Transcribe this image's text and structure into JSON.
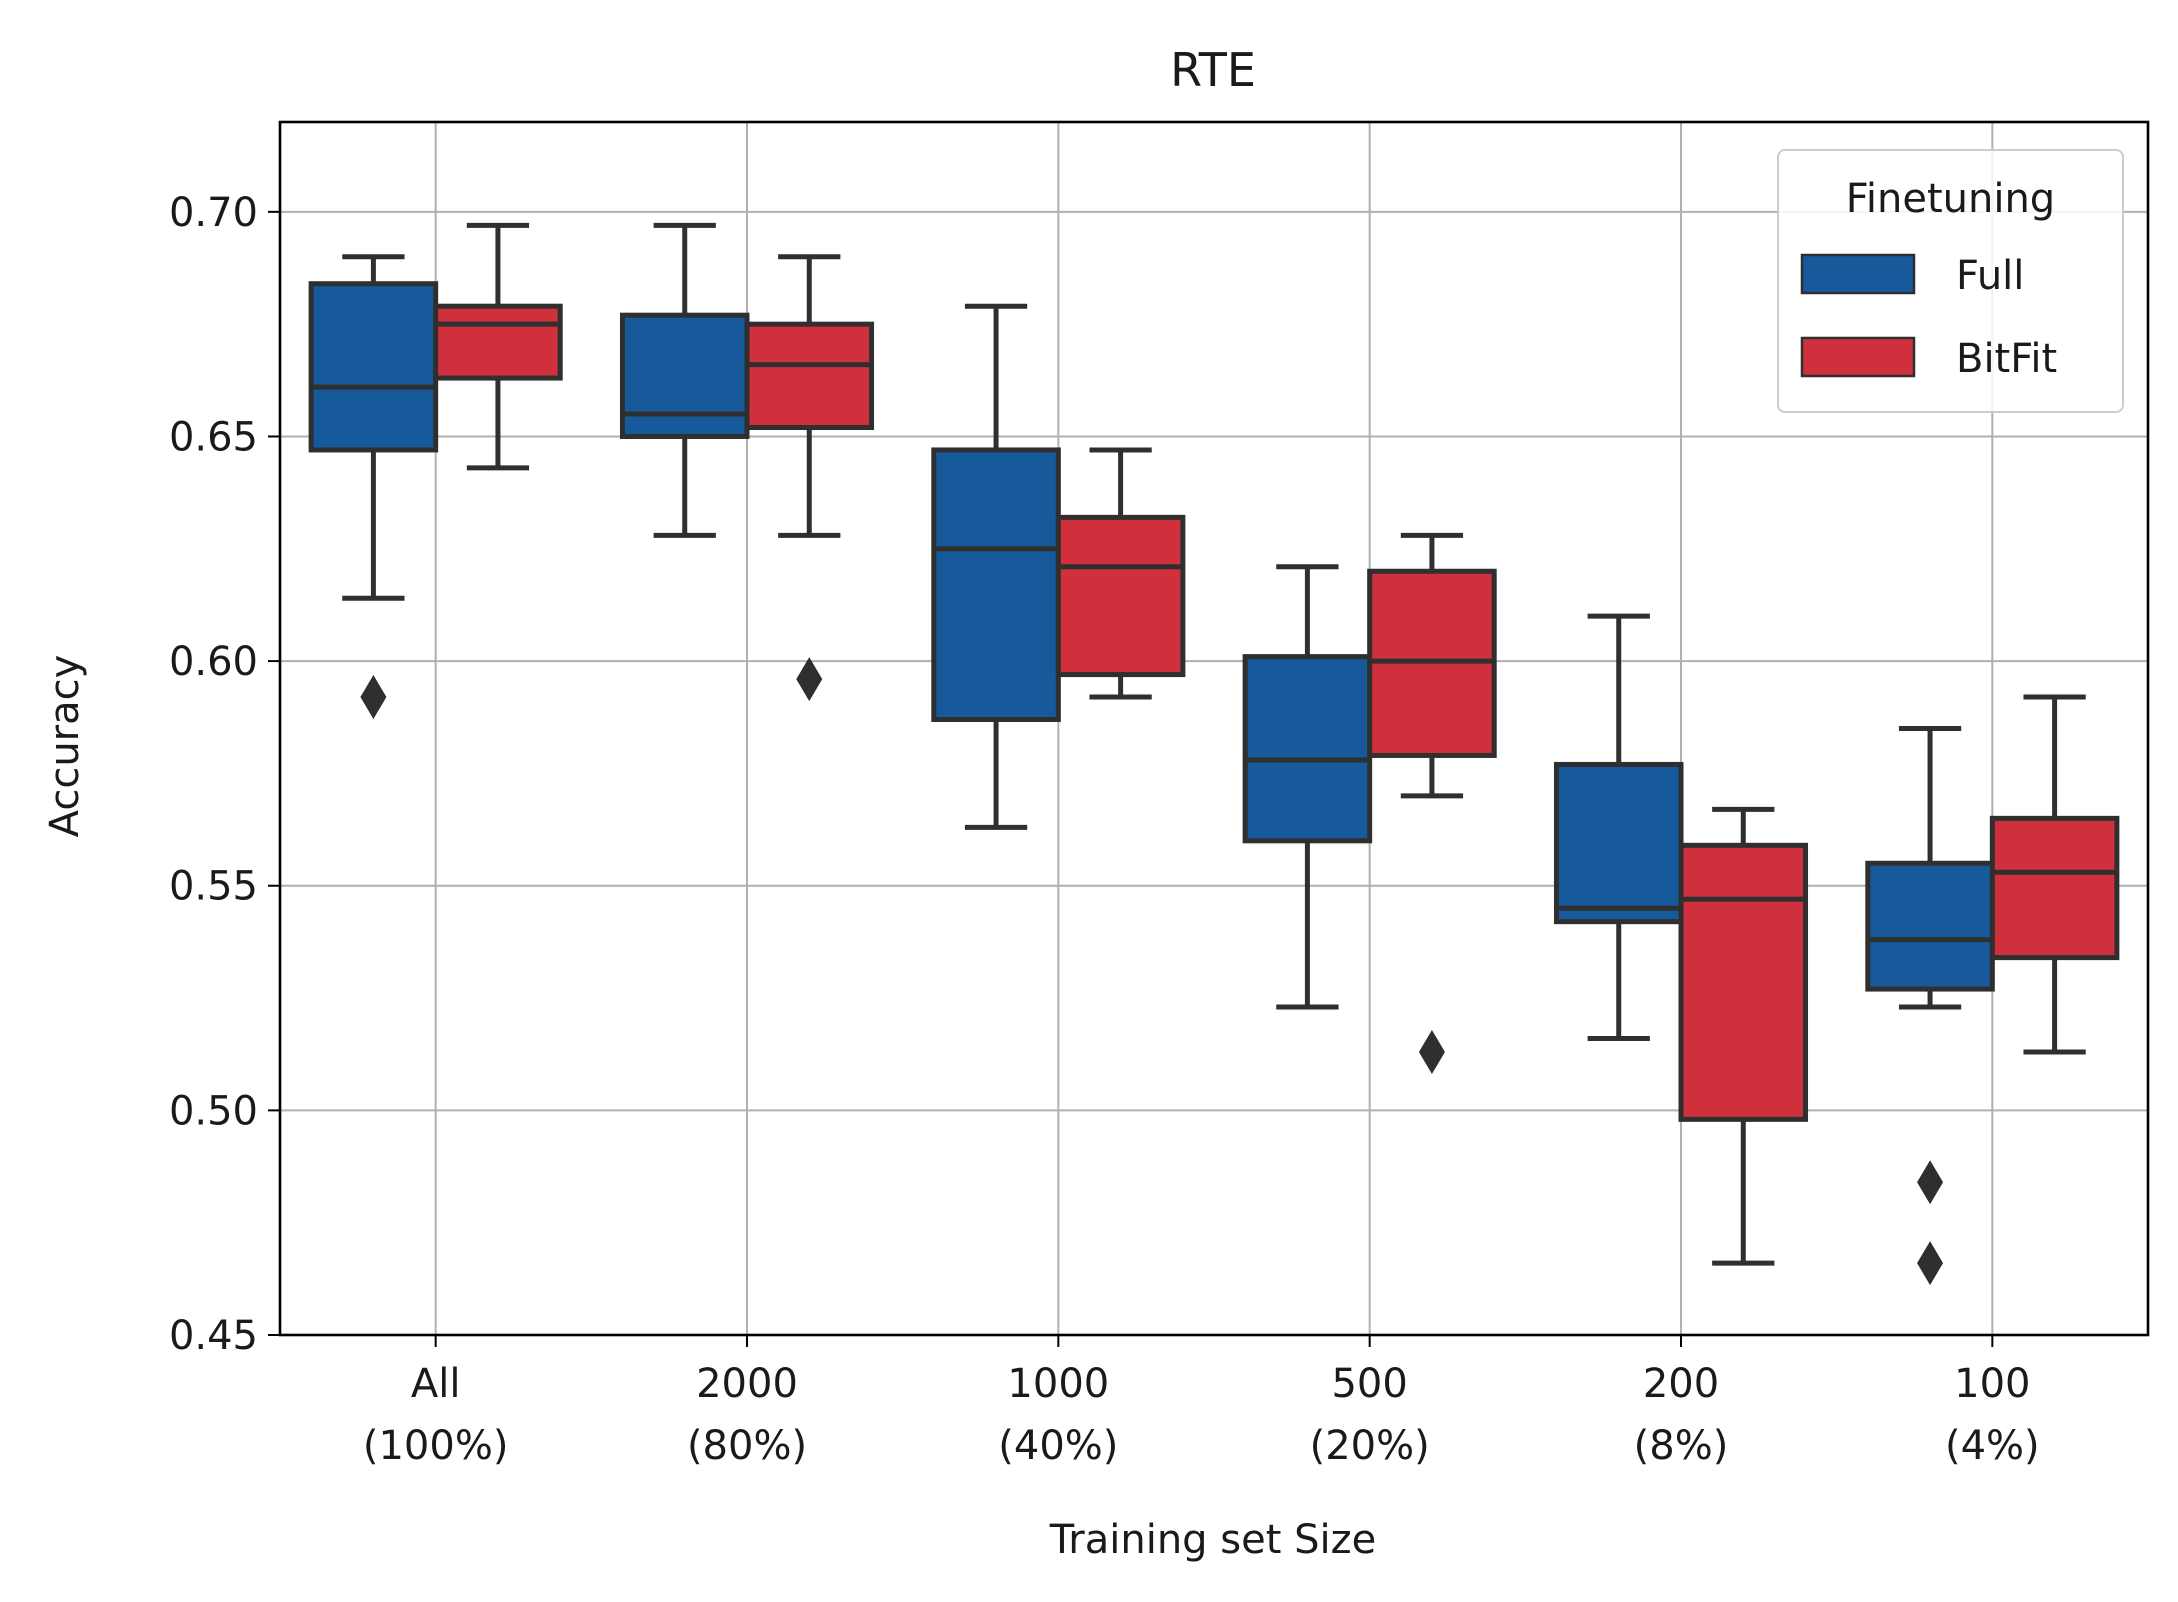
{
  "chart_data": {
    "type": "box",
    "title": "RTE",
    "xlabel": "Training set Size",
    "ylabel": "Accuracy",
    "ylim": [
      0.45,
      0.72
    ],
    "yticks": [
      "0.45",
      "0.50",
      "0.55",
      "0.60",
      "0.65",
      "0.70"
    ],
    "grid": true,
    "categories": [
      [
        "All",
        "(100%)"
      ],
      [
        "2000",
        "(80%)"
      ],
      [
        "1000",
        "(40%)"
      ],
      [
        "500",
        "(20%)"
      ],
      [
        "200",
        "(8%)"
      ],
      [
        "100",
        "(4%)"
      ]
    ],
    "legend": {
      "title": "Finetuning",
      "position": "top-right"
    },
    "series": [
      {
        "name": "Full",
        "color": "#165a9b",
        "boxes": [
          {
            "whisker_low": 0.614,
            "q1": 0.647,
            "median": 0.661,
            "q3": 0.684,
            "whisker_high": 0.69,
            "outliers": [
              0.592
            ]
          },
          {
            "whisker_low": 0.628,
            "q1": 0.65,
            "median": 0.655,
            "q3": 0.677,
            "whisker_high": 0.697,
            "outliers": []
          },
          {
            "whisker_low": 0.563,
            "q1": 0.587,
            "median": 0.625,
            "q3": 0.647,
            "whisker_high": 0.679,
            "outliers": []
          },
          {
            "whisker_low": 0.523,
            "q1": 0.56,
            "median": 0.578,
            "q3": 0.601,
            "whisker_high": 0.621,
            "outliers": []
          },
          {
            "whisker_low": 0.516,
            "q1": 0.542,
            "median": 0.545,
            "q3": 0.577,
            "whisker_high": 0.61,
            "outliers": []
          },
          {
            "whisker_low": 0.523,
            "q1": 0.527,
            "median": 0.538,
            "q3": 0.555,
            "whisker_high": 0.585,
            "outliers": [
              0.484,
              0.466
            ]
          }
        ]
      },
      {
        "name": "BitFit",
        "color": "#cf303b",
        "boxes": [
          {
            "whisker_low": 0.643,
            "q1": 0.663,
            "median": 0.675,
            "q3": 0.679,
            "whisker_high": 0.697,
            "outliers": []
          },
          {
            "whisker_low": 0.628,
            "q1": 0.652,
            "median": 0.666,
            "q3": 0.675,
            "whisker_high": 0.69,
            "outliers": [
              0.596
            ]
          },
          {
            "whisker_low": 0.592,
            "q1": 0.597,
            "median": 0.621,
            "q3": 0.632,
            "whisker_high": 0.647,
            "outliers": []
          },
          {
            "whisker_low": 0.57,
            "q1": 0.579,
            "median": 0.6,
            "q3": 0.62,
            "whisker_high": 0.628,
            "outliers": [
              0.513
            ]
          },
          {
            "whisker_low": 0.466,
            "q1": 0.498,
            "median": 0.547,
            "q3": 0.559,
            "whisker_high": 0.567,
            "outliers": []
          },
          {
            "whisker_low": 0.513,
            "q1": 0.534,
            "median": 0.553,
            "q3": 0.565,
            "whisker_high": 0.592,
            "outliers": []
          }
        ]
      }
    ]
  }
}
